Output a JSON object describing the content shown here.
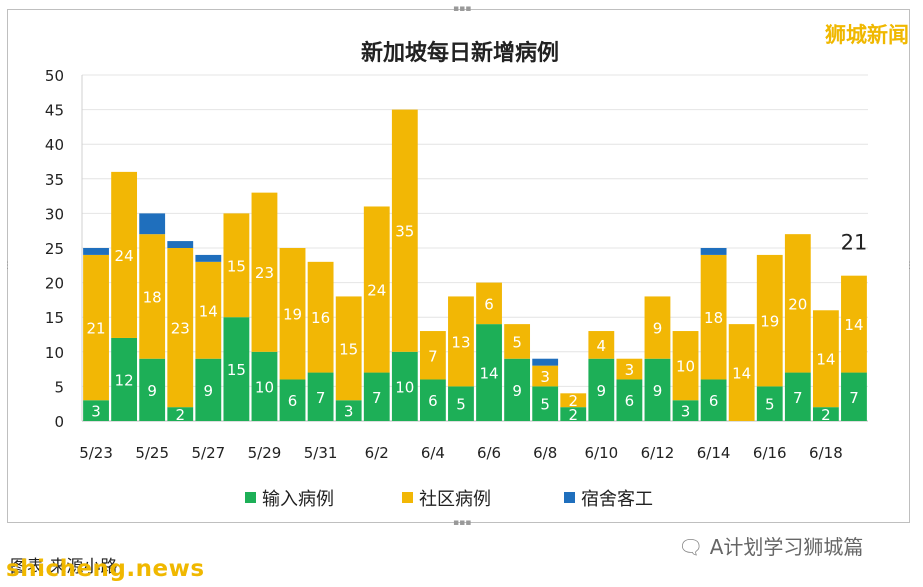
{
  "logo_text": "狮城新闻",
  "footer": {
    "caption": "图表   来源小路",
    "url": "shicheng.news",
    "wechat": "A计划学习狮城篇",
    "wechat_icon": "wechat-icon"
  },
  "colors": {
    "imported": "#1daf57",
    "community": "#f2b705",
    "dormitory": "#1f6fbd"
  },
  "chart_data": {
    "type": "bar",
    "stacked": true,
    "title": "新加坡每日新增病例",
    "ylim": [
      0,
      50
    ],
    "yticks": [
      0,
      5,
      10,
      15,
      20,
      25,
      30,
      35,
      40,
      45,
      50
    ],
    "grid": true,
    "legend_position": "bottom",
    "categories": [
      "5/23",
      "5/24",
      "5/25",
      "5/26",
      "5/27",
      "5/28",
      "5/29",
      "5/30",
      "5/31",
      "6/1",
      "6/2",
      "6/3",
      "6/4",
      "6/5",
      "6/6",
      "6/7",
      "6/8",
      "6/9",
      "6/10",
      "6/11",
      "6/12",
      "6/13",
      "6/14",
      "6/15",
      "6/16",
      "6/17",
      "6/18",
      "6/19"
    ],
    "xtick_labels": [
      "5/23",
      "5/25",
      "5/27",
      "5/29",
      "5/31",
      "6/2",
      "6/4",
      "6/6",
      "6/8",
      "6/10",
      "6/12",
      "6/14",
      "6/16",
      "6/18"
    ],
    "series": [
      {
        "name": "输入病例",
        "values": [
          3,
          12,
          9,
          2,
          9,
          15,
          10,
          6,
          7,
          3,
          7,
          10,
          6,
          5,
          14,
          9,
          5,
          2,
          9,
          6,
          9,
          3,
          6,
          0,
          5,
          7,
          2,
          7
        ]
      },
      {
        "name": "社区病例",
        "values": [
          21,
          24,
          18,
          23,
          14,
          15,
          23,
          19,
          16,
          15,
          24,
          35,
          7,
          13,
          6,
          5,
          3,
          2,
          4,
          3,
          9,
          10,
          18,
          14,
          19,
          20,
          14,
          14
        ]
      },
      {
        "name": "宿舍客工",
        "values": [
          1,
          0,
          3,
          1,
          1,
          0,
          0,
          0,
          0,
          0,
          0,
          0,
          0,
          0,
          0,
          0,
          1,
          0,
          0,
          0,
          0,
          0,
          1,
          0,
          0,
          0,
          0,
          0
        ]
      }
    ],
    "annotations": [
      {
        "category": "6/19",
        "text": "21"
      }
    ]
  }
}
